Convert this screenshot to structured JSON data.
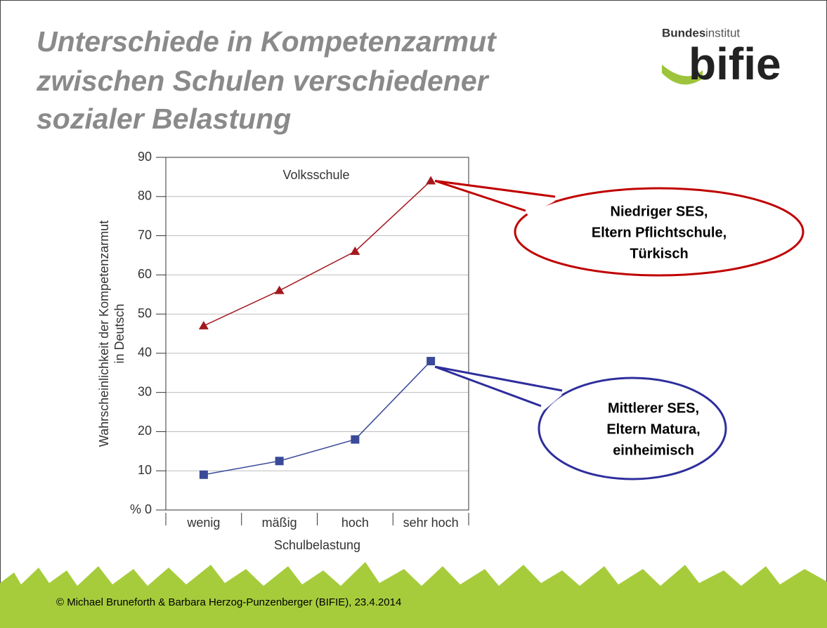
{
  "title_lines": [
    "Unterschiede in Kompetenzarmut",
    "zwischen Schulen verschiedener",
    "sozialer Belastung"
  ],
  "logo": {
    "prefix": "Bundes",
    "suffix": "institut",
    "name": "bifie"
  },
  "footer": "© Michael Bruneforth & Barbara Herzog-Punzenberger (BIFIE), 23.4.2014",
  "chart_data": {
    "type": "line",
    "annotation": "Volksschule",
    "y_label_lines": [
      "Wahrscheinlichkeit der Kompetenzarmut",
      "in Deutsch"
    ],
    "x_label": "Schulbelastung",
    "categories": [
      "wenig",
      "mäßig",
      "hoch",
      "sehr hoch"
    ],
    "series": [
      {
        "color": "#a3181e",
        "marker": "triangle",
        "values": [
          47,
          56,
          66,
          84
        ]
      },
      {
        "color": "#3a4a98",
        "marker": "square",
        "values": [
          9,
          12.5,
          18,
          38
        ]
      }
    ],
    "ylim": [
      0,
      90
    ],
    "yticks": [
      {
        "value": 0,
        "label": "% 0"
      },
      10,
      20,
      30,
      40,
      50,
      60,
      70,
      80,
      90
    ],
    "grid": true,
    "callouts": [
      {
        "series": 0,
        "color": "#c00000",
        "lines": [
          "Niedriger SES,",
          "Eltern Pflichtschule,",
          "Türkisch"
        ]
      },
      {
        "series": 1,
        "color": "#2e2e9c",
        "lines": [
          "Mittlerer SES,",
          "Eltern Matura,",
          "einheimisch"
        ]
      }
    ]
  }
}
